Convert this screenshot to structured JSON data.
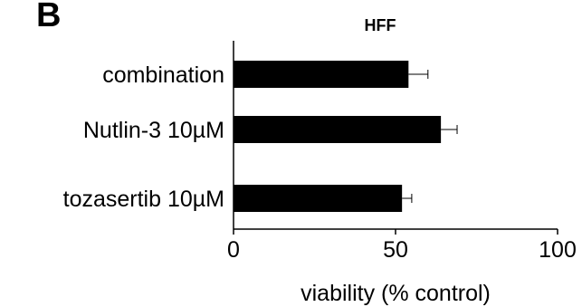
{
  "panel_label": "B",
  "chart_data": {
    "type": "bar",
    "orientation": "horizontal",
    "title": "HFF",
    "categories": [
      "combination",
      "Nutlin-3 10µM",
      "tozasertib 10µM"
    ],
    "series": [
      {
        "values": [
          54,
          64,
          52
        ],
        "errors": [
          6,
          5,
          3
        ]
      }
    ],
    "xlabel": "viability (% control)",
    "ylabel": "",
    "xlim": [
      0,
      100
    ],
    "xticks": [
      0,
      50,
      100
    ],
    "grid": false,
    "bar_color": "#000000"
  }
}
